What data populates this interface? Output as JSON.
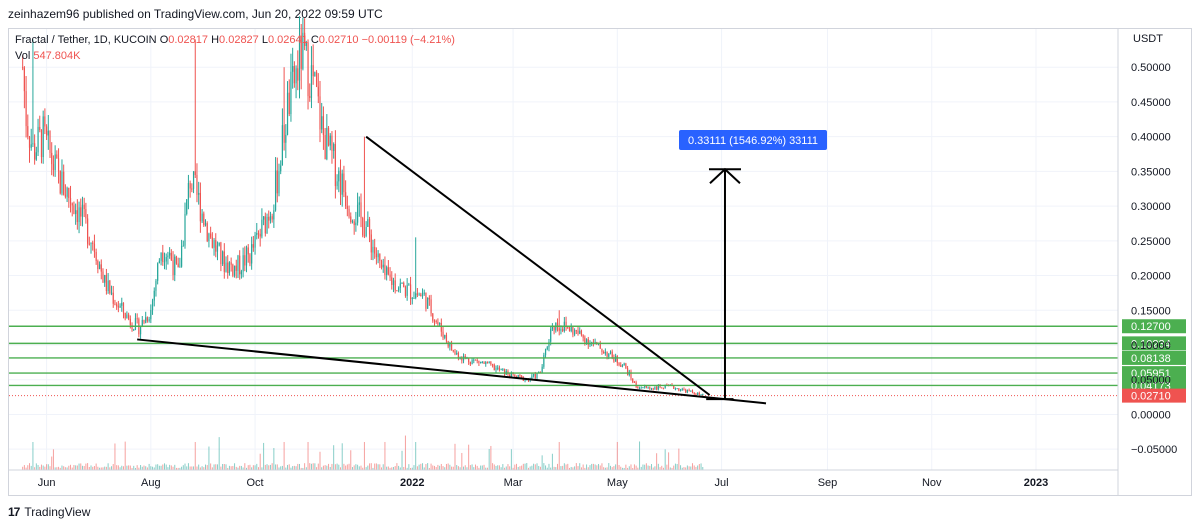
{
  "caption": "zeinhazem96 published on TradingView.com, Jun 20, 2022 09:59 UTC",
  "legend": {
    "symbol": "Fractal / Tether, 1D, KUCOIN",
    "o_label": "O",
    "o_value": "0.02817",
    "h_label": "H",
    "h_value": "0.02827",
    "l_label": "L",
    "l_value": "0.02641",
    "c_label": "C",
    "c_value": "0.02710",
    "change": "−0.00119 (−4.21%)",
    "vol_label": "Vol",
    "vol_value": "547.804K"
  },
  "footer": {
    "brand": "TradingView",
    "logo_text": "17"
  },
  "colors": {
    "up": "#26a69a",
    "down": "#ef5350",
    "level_line": "#4caf50",
    "level_badge": "#4caf50",
    "price_badge": "#ef5350",
    "measure_badge": "#2962ff",
    "grid": "#f0f3fa",
    "trendline": "#000000"
  },
  "chart_data": {
    "type": "candlestick",
    "symbol": "Fractal / Tether",
    "timeframe": "1D",
    "exchange": "KUCOIN",
    "currency_label": "USDT",
    "ylim": [
      -0.08,
      0.555
    ],
    "y_ticks": [
      "0.50000",
      "0.45000",
      "0.40000",
      "0.35000",
      "0.30000",
      "0.25000",
      "0.20000",
      "0.15000",
      "0.10000",
      "0.05000",
      "0.00000",
      "−0.05000"
    ],
    "y_tick_values": [
      0.5,
      0.45,
      0.4,
      0.35,
      0.3,
      0.25,
      0.2,
      0.15,
      0.1,
      0.05,
      0,
      -0.05
    ],
    "x_ticks": [
      "Jun",
      "Aug",
      "Oct",
      "2022",
      "Mar",
      "May",
      "Jul",
      "Sep",
      "Nov",
      "2023"
    ],
    "x_tick_dates": [
      "2021-06-01",
      "2021-08-01",
      "2021-10-01",
      "2022-01-01",
      "2022-03-01",
      "2022-05-01",
      "2022-07-01",
      "2022-09-01",
      "2022-11-01",
      "2023-01-01"
    ],
    "x_range": [
      "2021-05-10",
      "2023-02-18"
    ],
    "last_price": 0.0271,
    "last_price_label": "0.02710",
    "price_path": [
      [
        "2021-05-18",
        0.5
      ],
      [
        "2021-05-20",
        0.43
      ],
      [
        "2021-05-24",
        0.38
      ],
      [
        "2021-05-30",
        0.4
      ],
      [
        "2021-06-08",
        0.34
      ],
      [
        "2021-06-18",
        0.3
      ],
      [
        "2021-06-28",
        0.25
      ],
      [
        "2021-07-05",
        0.19
      ],
      [
        "2021-07-12",
        0.16
      ],
      [
        "2021-07-20",
        0.135
      ],
      [
        "2021-07-25",
        0.125
      ],
      [
        "2021-08-01",
        0.15
      ],
      [
        "2021-08-07",
        0.24
      ],
      [
        "2021-08-12",
        0.23
      ],
      [
        "2021-08-17",
        0.2
      ],
      [
        "2021-08-24",
        0.34
      ],
      [
        "2021-08-30",
        0.3
      ],
      [
        "2021-09-04",
        0.26
      ],
      [
        "2021-09-12",
        0.22
      ],
      [
        "2021-09-20",
        0.21
      ],
      [
        "2021-09-28",
        0.23
      ],
      [
        "2021-10-04",
        0.26
      ],
      [
        "2021-10-12",
        0.31
      ],
      [
        "2021-10-20",
        0.44
      ],
      [
        "2021-10-28",
        0.52
      ],
      [
        "2021-11-04",
        0.48
      ],
      [
        "2021-11-10",
        0.4
      ],
      [
        "2021-11-18",
        0.35
      ],
      [
        "2021-11-26",
        0.3
      ],
      [
        "2021-12-05",
        0.27
      ],
      [
        "2021-12-15",
        0.2
      ],
      [
        "2021-12-28",
        0.18
      ],
      [
        "2022-01-08",
        0.17
      ],
      [
        "2022-01-16",
        0.13
      ],
      [
        "2022-01-25",
        0.09
      ],
      [
        "2022-02-01",
        0.08
      ],
      [
        "2022-02-10",
        0.075
      ],
      [
        "2022-02-20",
        0.065
      ],
      [
        "2022-03-01",
        0.055
      ],
      [
        "2022-03-10",
        0.05
      ],
      [
        "2022-03-17",
        0.06
      ],
      [
        "2022-03-24",
        0.13
      ],
      [
        "2022-04-02",
        0.125
      ],
      [
        "2022-04-12",
        0.11
      ],
      [
        "2022-04-24",
        0.09
      ],
      [
        "2022-05-05",
        0.07
      ],
      [
        "2022-05-12",
        0.04
      ],
      [
        "2022-05-20",
        0.038
      ],
      [
        "2022-06-01",
        0.04
      ],
      [
        "2022-06-12",
        0.033
      ],
      [
        "2022-06-20",
        0.0271
      ]
    ],
    "wick_highs": [
      [
        "2021-05-24",
        0.54
      ],
      [
        "2021-08-27",
        0.54
      ],
      [
        "2021-10-18",
        0.5
      ],
      [
        "2021-11-01",
        0.54
      ],
      [
        "2021-12-04",
        0.4
      ],
      [
        "2022-01-03",
        0.255
      ],
      [
        "2022-03-28",
        0.15
      ]
    ],
    "levels": [
      {
        "value": 0.127,
        "label": "0.12700"
      },
      {
        "value": 0.10234,
        "label": "0.10234"
      },
      {
        "value": 0.08138,
        "label": "0.08138"
      },
      {
        "value": 0.05951,
        "label": "0.05951"
      },
      {
        "value": 0.04173,
        "label": "0.04173"
      }
    ],
    "trendlines": [
      {
        "from": [
          "2021-07-24",
          0.108
        ],
        "to": [
          "2022-07-27",
          0.016
        ]
      },
      {
        "from": [
          "2021-12-05",
          0.4
        ],
        "to": [
          "2022-06-24",
          0.028
        ]
      },
      {
        "from": [
          "2022-06-22",
          0.022
        ],
        "to": [
          "2022-07-08",
          0.022
        ]
      }
    ],
    "measure": {
      "from": [
        "2022-07-03",
        0.022
      ],
      "to": [
        "2022-07-03",
        0.353
      ],
      "label": "0.33111 (1546.92%) 33111"
    }
  }
}
